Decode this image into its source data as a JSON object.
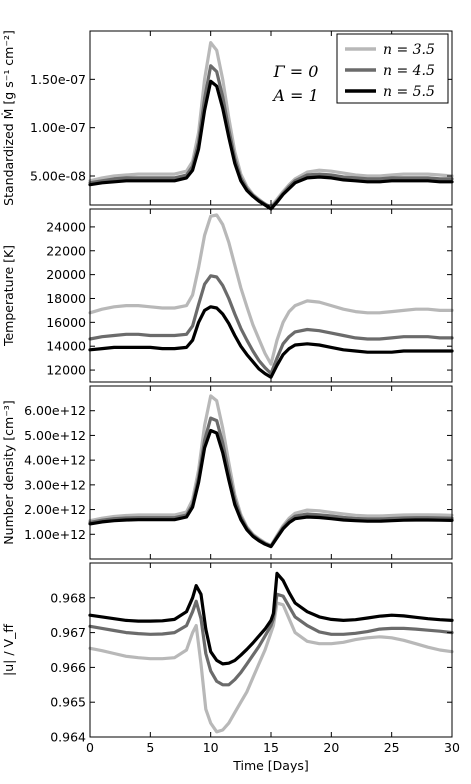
{
  "figure": {
    "xlabel": "Time [Days]",
    "annotations": [
      "Γ = 0",
      "A = 1"
    ],
    "legend": [
      "n = 3.5",
      "n = 4.5",
      "n = 5.5"
    ],
    "series_colors": [
      "#b8b8b8",
      "#6b6b6b",
      "#000000"
    ]
  },
  "chart_data": [
    {
      "type": "line",
      "ylabel": "Standardized Ṁ [g s⁻¹ cm⁻²]",
      "xlim": [
        0,
        30
      ],
      "ylim": [
        2e-08,
        2e-07
      ],
      "xticks": [
        "0",
        "5",
        "10",
        "15",
        "20",
        "25",
        "30"
      ],
      "yticks": [
        5e-08,
        1e-07,
        1.5e-07
      ],
      "ytick_labels": [
        "5.00e-08",
        "1.00e-07",
        "1.50e-07"
      ],
      "legend_position": "top-right",
      "x": [
        0,
        1,
        2,
        3,
        4,
        5,
        6,
        7,
        8,
        8.5,
        9,
        9.5,
        10,
        10.5,
        11,
        11.5,
        12,
        12.5,
        13,
        13.5,
        14,
        14.5,
        15,
        15.5,
        16,
        16.5,
        17,
        18,
        19,
        20,
        21,
        22,
        23,
        24,
        25,
        26,
        27,
        28,
        29,
        30
      ],
      "series": [
        {
          "name": "n = 3.5",
          "values": [
            4.5e-08,
            4.8e-08,
            5e-08,
            5.1e-08,
            5.2e-08,
            5.2e-08,
            5.2e-08,
            5.2e-08,
            5.5e-08,
            6.5e-08,
            9.5e-08,
            1.5e-07,
            1.88e-07,
            1.8e-07,
            1.5e-07,
            1.1e-07,
            7.5e-08,
            5.2e-08,
            3.9e-08,
            3.1e-08,
            2.6e-08,
            2.1e-08,
            1.8e-08,
            2.6e-08,
            3.4e-08,
            4.1e-08,
            4.7e-08,
            5.4e-08,
            5.6e-08,
            5.5e-08,
            5.3e-08,
            5.1e-08,
            5e-08,
            5e-08,
            5.1e-08,
            5.2e-08,
            5.2e-08,
            5.2e-08,
            5.1e-08,
            5e-08
          ]
        },
        {
          "name": "n = 4.5",
          "values": [
            4.3e-08,
            4.5e-08,
            4.7e-08,
            4.8e-08,
            4.8e-08,
            4.8e-08,
            4.8e-08,
            4.8e-08,
            5.1e-08,
            6e-08,
            8.5e-08,
            1.3e-07,
            1.64e-07,
            1.58e-07,
            1.32e-07,
            9.8e-08,
            6.8e-08,
            4.8e-08,
            3.7e-08,
            3e-08,
            2.5e-08,
            2.1e-08,
            1.7e-08,
            2.4e-08,
            3.2e-08,
            3.9e-08,
            4.5e-08,
            5.1e-08,
            5.2e-08,
            5.1e-08,
            4.9e-08,
            4.8e-08,
            4.7e-08,
            4.7e-08,
            4.8e-08,
            4.8e-08,
            4.8e-08,
            4.8e-08,
            4.7e-08,
            4.7e-08
          ]
        },
        {
          "name": "n = 5.5",
          "values": [
            4.1e-08,
            4.3e-08,
            4.4e-08,
            4.5e-08,
            4.5e-08,
            4.5e-08,
            4.5e-08,
            4.5e-08,
            4.8e-08,
            5.6e-08,
            7.8e-08,
            1.18e-07,
            1.48e-07,
            1.43e-07,
            1.2e-07,
            9e-08,
            6.3e-08,
            4.5e-08,
            3.5e-08,
            2.9e-08,
            2.4e-08,
            2e-08,
            1.6e-08,
            2.3e-08,
            3.1e-08,
            3.7e-08,
            4.3e-08,
            4.8e-08,
            4.9e-08,
            4.8e-08,
            4.6e-08,
            4.5e-08,
            4.4e-08,
            4.4e-08,
            4.5e-08,
            4.5e-08,
            4.5e-08,
            4.5e-08,
            4.4e-08,
            4.4e-08
          ]
        }
      ]
    },
    {
      "type": "line",
      "ylabel": "Temperature [K]",
      "xlim": [
        0,
        30
      ],
      "ylim": [
        11000,
        25500
      ],
      "xticks": [
        "0",
        "5",
        "10",
        "15",
        "20",
        "25",
        "30"
      ],
      "yticks": [
        12000,
        14000,
        16000,
        18000,
        20000,
        22000,
        24000
      ],
      "ytick_labels": [
        "12000",
        "14000",
        "16000",
        "18000",
        "20000",
        "22000",
        "24000"
      ],
      "x": [
        0,
        1,
        2,
        3,
        4,
        5,
        6,
        7,
        8,
        8.5,
        9,
        9.5,
        10,
        10.5,
        11,
        11.5,
        12,
        12.5,
        13,
        13.5,
        14,
        14.5,
        15,
        15.5,
        16,
        16.5,
        17,
        18,
        19,
        20,
        21,
        22,
        23,
        24,
        25,
        26,
        27,
        28,
        29,
        30
      ],
      "series": [
        {
          "name": "n = 3.5",
          "values": [
            16800,
            17100,
            17300,
            17400,
            17400,
            17300,
            17200,
            17200,
            17400,
            18300,
            20600,
            23300,
            24900,
            25000,
            24200,
            22700,
            20800,
            18900,
            17300,
            15800,
            14600,
            13400,
            12500,
            14500,
            16000,
            16900,
            17400,
            17800,
            17700,
            17400,
            17100,
            16900,
            16800,
            16800,
            16900,
            17000,
            17100,
            17100,
            17000,
            17000
          ]
        },
        {
          "name": "n = 4.5",
          "values": [
            14600,
            14800,
            14900,
            15000,
            15000,
            14900,
            14900,
            14900,
            15000,
            15700,
            17500,
            19200,
            19900,
            19800,
            19100,
            18000,
            16700,
            15500,
            14500,
            13600,
            12800,
            12200,
            11700,
            13000,
            14200,
            14800,
            15200,
            15400,
            15300,
            15100,
            14900,
            14700,
            14600,
            14600,
            14700,
            14800,
            14800,
            14800,
            14700,
            14700
          ]
        },
        {
          "name": "n = 5.5",
          "values": [
            13700,
            13800,
            13900,
            13900,
            13900,
            13900,
            13800,
            13800,
            13900,
            14500,
            16000,
            17000,
            17300,
            17200,
            16700,
            15900,
            14900,
            14000,
            13300,
            12700,
            12100,
            11700,
            11400,
            12400,
            13300,
            13800,
            14100,
            14200,
            14100,
            13900,
            13700,
            13600,
            13500,
            13500,
            13500,
            13600,
            13600,
            13600,
            13600,
            13600
          ]
        }
      ]
    },
    {
      "type": "line",
      "ylabel": "Number density [cm⁻³]",
      "xlim": [
        0,
        30
      ],
      "ylim": [
        0,
        7000000000000.0
      ],
      "xticks": [
        "0",
        "5",
        "10",
        "15",
        "20",
        "25",
        "30"
      ],
      "yticks": [
        1000000000000.0,
        2000000000000.0,
        3000000000000.0,
        4000000000000.0,
        5000000000000.0,
        6000000000000.0
      ],
      "ytick_labels": [
        "1.00e+12",
        "2.00e+12",
        "3.00e+12",
        "4.00e+12",
        "5.00e+12",
        "6.00e+12"
      ],
      "x": [
        0,
        1,
        2,
        3,
        4,
        5,
        6,
        7,
        8,
        8.5,
        9,
        9.5,
        10,
        10.5,
        11,
        11.5,
        12,
        12.5,
        13,
        13.5,
        14,
        14.5,
        15,
        15.5,
        16,
        16.5,
        17,
        18,
        19,
        20,
        21,
        22,
        23,
        24,
        25,
        26,
        27,
        28,
        29,
        30
      ],
      "series": [
        {
          "name": "n = 3.5",
          "values": [
            1550000000000.0,
            1650000000000.0,
            1720000000000.0,
            1760000000000.0,
            1780000000000.0,
            1780000000000.0,
            1780000000000.0,
            1780000000000.0,
            1900000000000.0,
            2400000000000.0,
            3600000000000.0,
            5400000000000.0,
            6600000000000.0,
            6400000000000.0,
            5300000000000.0,
            3900000000000.0,
            2600000000000.0,
            1800000000000.0,
            1300000000000.0,
            1000000000000.0,
            820000000000.0,
            660000000000.0,
            550000000000.0,
            950000000000.0,
            1350000000000.0,
            1650000000000.0,
            1850000000000.0,
            1980000000000.0,
            1950000000000.0,
            1880000000000.0,
            1820000000000.0,
            1770000000000.0,
            1740000000000.0,
            1740000000000.0,
            1760000000000.0,
            1780000000000.0,
            1790000000000.0,
            1790000000000.0,
            1780000000000.0,
            1770000000000.0
          ]
        },
        {
          "name": "n = 4.5",
          "values": [
            1480000000000.0,
            1570000000000.0,
            1630000000000.0,
            1660000000000.0,
            1670000000000.0,
            1670000000000.0,
            1670000000000.0,
            1670000000000.0,
            1780000000000.0,
            2200000000000.0,
            3300000000000.0,
            4800000000000.0,
            5700000000000.0,
            5600000000000.0,
            4700000000000.0,
            3500000000000.0,
            2400000000000.0,
            1700000000000.0,
            1250000000000.0,
            960000000000.0,
            780000000000.0,
            630000000000.0,
            520000000000.0,
            900000000000.0,
            1280000000000.0,
            1550000000000.0,
            1730000000000.0,
            1820000000000.0,
            1790000000000.0,
            1740000000000.0,
            1680000000000.0,
            1640000000000.0,
            1620000000000.0,
            1620000000000.0,
            1640000000000.0,
            1660000000000.0,
            1670000000000.0,
            1670000000000.0,
            1660000000000.0,
            1650000000000.0
          ]
        },
        {
          "name": "n = 5.5",
          "values": [
            1420000000000.0,
            1500000000000.0,
            1550000000000.0,
            1580000000000.0,
            1590000000000.0,
            1590000000000.0,
            1590000000000.0,
            1590000000000.0,
            1700000000000.0,
            2100000000000.0,
            3100000000000.0,
            4500000000000.0,
            5200000000000.0,
            5100000000000.0,
            4300000000000.0,
            3200000000000.0,
            2200000000000.0,
            1600000000000.0,
            1180000000000.0,
            920000000000.0,
            740000000000.0,
            600000000000.0,
            500000000000.0,
            860000000000.0,
            1220000000000.0,
            1470000000000.0,
            1630000000000.0,
            1700000000000.0,
            1680000000000.0,
            1630000000000.0,
            1580000000000.0,
            1550000000000.0,
            1530000000000.0,
            1530000000000.0,
            1550000000000.0,
            1570000000000.0,
            1580000000000.0,
            1580000000000.0,
            1570000000000.0,
            1560000000000.0
          ]
        }
      ]
    },
    {
      "type": "line",
      "ylabel": "|u| / V_ff",
      "xlim": [
        0,
        30
      ],
      "ylim": [
        0.964,
        0.969
      ],
      "xticks": [
        "0",
        "5",
        "10",
        "15",
        "20",
        "25",
        "30"
      ],
      "yticks": [
        0.964,
        0.965,
        0.966,
        0.967,
        0.968
      ],
      "ytick_labels": [
        "0.964",
        "0.965",
        "0.966",
        "0.967",
        "0.968"
      ],
      "x": [
        0,
        1,
        2,
        3,
        4,
        5,
        6,
        7,
        8,
        8.5,
        8.8,
        9.2,
        9.6,
        10,
        10.5,
        11,
        11.5,
        12,
        12.5,
        13,
        13.5,
        14,
        14.5,
        15,
        15.2,
        15.5,
        16,
        16.5,
        17,
        18,
        19,
        20,
        21,
        22,
        23,
        24,
        25,
        26,
        27,
        28,
        29,
        30
      ],
      "series": [
        {
          "name": "n = 3.5",
          "values": [
            0.96655,
            0.96648,
            0.9664,
            0.96632,
            0.96628,
            0.96625,
            0.96625,
            0.96628,
            0.9665,
            0.967,
            0.9672,
            0.9661,
            0.9648,
            0.9644,
            0.96415,
            0.9642,
            0.9644,
            0.9647,
            0.965,
            0.9653,
            0.9657,
            0.9661,
            0.9665,
            0.967,
            0.9672,
            0.96785,
            0.9678,
            0.9674,
            0.967,
            0.96675,
            0.96668,
            0.96668,
            0.96672,
            0.9668,
            0.96685,
            0.96688,
            0.96685,
            0.96678,
            0.96668,
            0.96658,
            0.9665,
            0.96645
          ]
        },
        {
          "name": "n = 4.5",
          "values": [
            0.96718,
            0.96712,
            0.96706,
            0.967,
            0.96697,
            0.96695,
            0.96696,
            0.967,
            0.9672,
            0.9676,
            0.9679,
            0.9674,
            0.9664,
            0.9659,
            0.9656,
            0.9655,
            0.9655,
            0.96565,
            0.96585,
            0.9661,
            0.96635,
            0.9666,
            0.9669,
            0.9672,
            0.9674,
            0.9681,
            0.96805,
            0.96775,
            0.96745,
            0.9672,
            0.96702,
            0.96695,
            0.96695,
            0.96698,
            0.96703,
            0.9671,
            0.96712,
            0.96712,
            0.9671,
            0.96707,
            0.96704,
            0.967
          ]
        },
        {
          "name": "n = 5.5",
          "values": [
            0.9675,
            0.96745,
            0.9674,
            0.96735,
            0.96733,
            0.96733,
            0.96734,
            0.96738,
            0.9676,
            0.968,
            0.96835,
            0.9681,
            0.9671,
            0.96645,
            0.9662,
            0.9661,
            0.96612,
            0.9662,
            0.96635,
            0.96652,
            0.9667,
            0.9669,
            0.9671,
            0.96735,
            0.96755,
            0.9687,
            0.9685,
            0.96815,
            0.96785,
            0.9676,
            0.96745,
            0.96738,
            0.96735,
            0.96737,
            0.96742,
            0.96747,
            0.9675,
            0.96748,
            0.96744,
            0.9674,
            0.96737,
            0.96735
          ]
        }
      ]
    }
  ]
}
